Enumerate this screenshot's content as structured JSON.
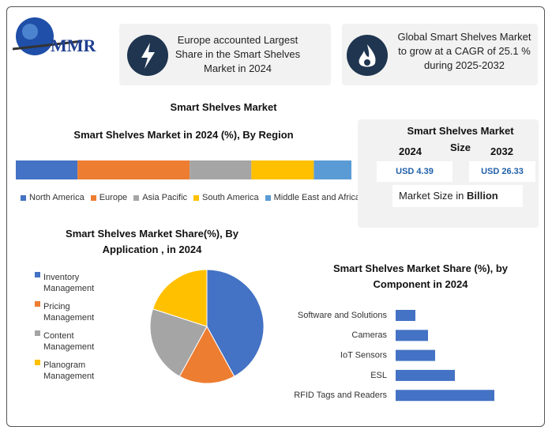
{
  "logo": "MMR",
  "highlights": [
    "Europe accounted Largest Share in the Smart Shelves Market in 2024",
    "Global Smart Shelves Market to grow at a CAGR of 25.1 % during 2025-2032"
  ],
  "title": "Smart Shelves Market",
  "market_size": {
    "title": "Smart Shelves Market Size",
    "years": [
      "2024",
      "2032"
    ],
    "values": [
      "USD 4.39",
      "USD 26.33"
    ],
    "note": "Market Size in",
    "unit": "Billion"
  },
  "chart_data": [
    {
      "type": "stacked-bar",
      "title": "Smart Shelves Market  in 2024 (%), By Region",
      "series": [
        {
          "name": "North America",
          "color": "#4472c4",
          "values": [
            18.4
          ]
        },
        {
          "name": "Europe",
          "color": "#ed7d31",
          "values": [
            33.4
          ]
        },
        {
          "name": "Asia Pacific",
          "color": "#a5a5a5",
          "values": [
            18.4
          ]
        },
        {
          "name": "South America",
          "color": "#ffc000",
          "values": [
            18.6
          ]
        },
        {
          "name": "Middle East and Africa",
          "color": "#5b9bd5",
          "values": [
            11.2
          ]
        }
      ]
    },
    {
      "type": "pie",
      "title": "Smart Shelves Market  Share(%), By Application , in 2024",
      "categories": [
        "Inventory Management",
        "Pricing Management",
        "Content Management",
        "Planogram Management"
      ],
      "values": [
        42,
        16,
        22,
        20
      ],
      "colors": [
        "#4472c4",
        "#ed7d31",
        "#a5a5a5",
        "#ffc000"
      ]
    },
    {
      "type": "hbar",
      "title": "Smart Shelves Market   Share (%), by Component in 2024",
      "categories": [
        "Software and Solutions",
        "Cameras",
        "IoT Sensors",
        "ESL",
        "RFID Tags and Readers"
      ],
      "values": [
        10,
        16.4,
        20,
        30,
        50
      ],
      "color": "#4472c4"
    }
  ]
}
